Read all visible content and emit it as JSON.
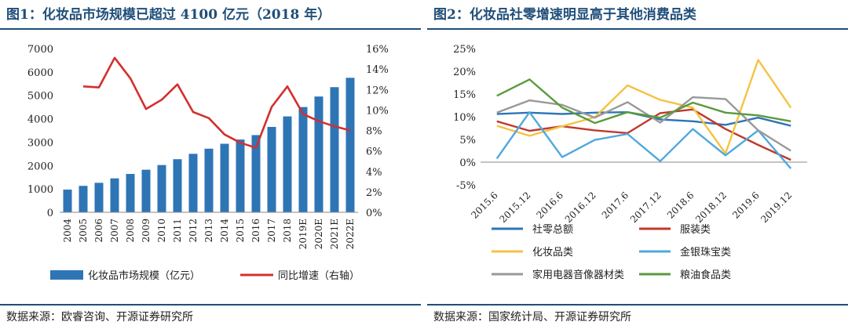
{
  "left": {
    "title": "图1：化妆品市场规模已超过 4100 亿元（2018 年）",
    "source": "数据来源：欧睿咨询、开源证券研究所",
    "chart_data": {
      "type": "bar",
      "categories": [
        "2004",
        "2005",
        "2006",
        "2007",
        "2008",
        "2009",
        "2010",
        "2011",
        "2012",
        "2013",
        "2014",
        "2015",
        "2016",
        "2017",
        "2018",
        "2019E",
        "2020E",
        "2021E",
        "2022E"
      ],
      "series": [
        {
          "name": "化妆品市场规模（亿元）",
          "type": "bar",
          "axis": "left",
          "color": "#2e75b6",
          "values": [
            970,
            1130,
            1260,
            1450,
            1640,
            1820,
            2020,
            2270,
            2500,
            2720,
            2930,
            3110,
            3300,
            3650,
            4100,
            4500,
            4950,
            5350,
            5750
          ]
        },
        {
          "name": "同比增速（右轴）",
          "type": "line",
          "axis": "right",
          "color": "#d32f2f",
          "values": [
            null,
            12.3,
            12.2,
            15.1,
            13.1,
            10.1,
            11.0,
            12.5,
            9.8,
            9.2,
            7.6,
            6.8,
            6.3,
            10.3,
            12.3,
            9.6,
            8.9,
            8.4,
            8.0
          ]
        }
      ],
      "y_left": {
        "min": 0,
        "max": 7000,
        "ticks": [
          "0",
          "1000",
          "2000",
          "3000",
          "4000",
          "5000",
          "6000",
          "7000"
        ]
      },
      "y_right": {
        "min": 0,
        "max": 16,
        "ticks": [
          "0%",
          "2%",
          "4%",
          "6%",
          "8%",
          "10%",
          "12%",
          "14%",
          "16%"
        ]
      },
      "legend": "bottom"
    }
  },
  "right": {
    "title": "图2：化妆品社零增速明显高于其他消费品类",
    "source": "数据来源：国家统计局、开源证券研究所",
    "chart_data": {
      "type": "line",
      "x": [
        "2015.6",
        "2015.12",
        "2016.6",
        "2016.12",
        "2017.6",
        "2017.12",
        "2018.6",
        "2018.12",
        "2019.6",
        "2019.12"
      ],
      "y": {
        "min": -5,
        "max": 25,
        "ticks": [
          "-5%",
          "0%",
          "5%",
          "10%",
          "15%",
          "20%",
          "25%"
        ]
      },
      "series": [
        {
          "name": "社零总额",
          "color": "#2e75b6",
          "values": [
            10.6,
            10.9,
            10.6,
            10.9,
            11.0,
            9.4,
            9.0,
            8.2,
            9.8,
            8.0
          ]
        },
        {
          "name": "服装类",
          "color": "#c0392b",
          "values": [
            9.0,
            6.9,
            7.9,
            7.0,
            6.4,
            10.8,
            11.6,
            7.3,
            3.8,
            0.5
          ]
        },
        {
          "name": "化妆品类",
          "color": "#f5c242",
          "values": [
            8.0,
            5.8,
            7.9,
            9.9,
            16.9,
            13.7,
            12.0,
            1.9,
            22.5,
            12.0
          ]
        },
        {
          "name": "金银珠宝类",
          "color": "#4fa8de",
          "values": [
            0.8,
            11.0,
            1.1,
            4.9,
            6.2,
            0.2,
            7.3,
            1.5,
            7.0,
            -1.4
          ]
        },
        {
          "name": "家用电器音像器材类",
          "color": "#999999",
          "values": [
            10.9,
            13.6,
            12.6,
            9.8,
            13.2,
            8.7,
            14.3,
            13.9,
            7.0,
            2.5
          ]
        },
        {
          "name": "粮油食品类",
          "color": "#5a9a3c",
          "values": [
            14.6,
            18.2,
            12.0,
            8.6,
            11.0,
            9.8,
            13.1,
            10.9,
            10.3,
            9.0
          ]
        }
      ],
      "legend": "bottom"
    }
  }
}
